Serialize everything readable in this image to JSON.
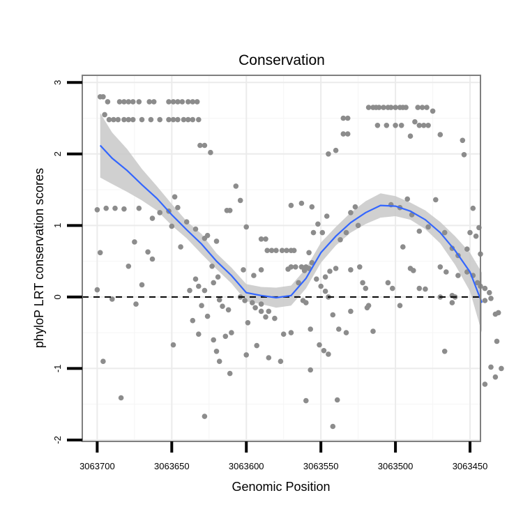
{
  "chart_data": {
    "type": "scatter",
    "title": "Conservation",
    "xlabel": "Genomic Position",
    "ylabel": "phyloP LRT conservation scores",
    "xlim": [
      3063710,
      3063443
    ],
    "ylim": [
      -2.02,
      3.1
    ],
    "x_reversed": true,
    "grid": true,
    "x_ticks": [
      3063700,
      3063650,
      3063600,
      3063550,
      3063500,
      3063450
    ],
    "x_tick_labels": [
      "3063700",
      "3063650",
      "3063600",
      "3063550",
      "3063500",
      "3063450"
    ],
    "y_ticks": [
      -2,
      -1,
      0,
      1,
      2,
      3
    ],
    "y_tick_labels": [
      "-2",
      "-1",
      "0",
      "1",
      "2",
      "3"
    ],
    "reference_line": {
      "y": 0,
      "style": "dashed",
      "color": "#000000"
    },
    "colors": {
      "points": "#8c8c8c",
      "smooth": "#3366ff",
      "ribbon": "#c8c8c8",
      "grid": "#ebebeb",
      "border": "#7f7f7f"
    },
    "series": [
      {
        "name": "phyloP scores",
        "type": "scatter",
        "points": [
          [
            3063698,
            2.8
          ],
          [
            3063696,
            2.8
          ],
          [
            3063693,
            2.73
          ],
          [
            3063685,
            2.73
          ],
          [
            3063682,
            2.73
          ],
          [
            3063679,
            2.73
          ],
          [
            3063676,
            2.73
          ],
          [
            3063672,
            2.73
          ],
          [
            3063665,
            2.73
          ],
          [
            3063662,
            2.73
          ],
          [
            3063652,
            2.73
          ],
          [
            3063649,
            2.73
          ],
          [
            3063646,
            2.73
          ],
          [
            3063643,
            2.73
          ],
          [
            3063639,
            2.73
          ],
          [
            3063636,
            2.73
          ],
          [
            3063633,
            2.73
          ],
          [
            3063695,
            2.55
          ],
          [
            3063692,
            2.48
          ],
          [
            3063689,
            2.48
          ],
          [
            3063686,
            2.48
          ],
          [
            3063682,
            2.48
          ],
          [
            3063679,
            2.48
          ],
          [
            3063676,
            2.48
          ],
          [
            3063670,
            2.48
          ],
          [
            3063664,
            2.48
          ],
          [
            3063658,
            2.48
          ],
          [
            3063652,
            2.48
          ],
          [
            3063649,
            2.48
          ],
          [
            3063646,
            2.48
          ],
          [
            3063642,
            2.48
          ],
          [
            3063639,
            2.48
          ],
          [
            3063636,
            2.48
          ],
          [
            3063632,
            2.48
          ],
          [
            3063700,
            1.22
          ],
          [
            3063694,
            1.24
          ],
          [
            3063688,
            1.24
          ],
          [
            3063682,
            1.23
          ],
          [
            3063672,
            1.24
          ],
          [
            3063663,
            1.1
          ],
          [
            3063658,
            1.18
          ],
          [
            3063652,
            1.2
          ],
          [
            3063648,
            1.4
          ],
          [
            3063646,
            1.25
          ],
          [
            3063698,
            0.62
          ],
          [
            3063675,
            0.77
          ],
          [
            3063679,
            0.43
          ],
          [
            3063663,
            0.53
          ],
          [
            3063666,
            0.63
          ],
          [
            3063650,
            0.99
          ],
          [
            3063644,
            0.7
          ],
          [
            3063700,
            0.1
          ],
          [
            3063690,
            -0.03
          ],
          [
            3063674,
            -0.1
          ],
          [
            3063670,
            0.17
          ],
          [
            3063696,
            -0.9
          ],
          [
            3063684,
            -1.41
          ],
          [
            3063631,
            2.12
          ],
          [
            3063628,
            2.12
          ],
          [
            3063624,
            2.02
          ],
          [
            3063640,
            1.05
          ],
          [
            3063634,
            0.95
          ],
          [
            3063628,
            0.82
          ],
          [
            3063626,
            0.86
          ],
          [
            3063620,
            0.78
          ],
          [
            3063623,
            0.43
          ],
          [
            3063619,
            0.28
          ],
          [
            3063628,
            0.09
          ],
          [
            3063638,
            0.09
          ],
          [
            3063634,
            0.25
          ],
          [
            3063632,
            0.15
          ],
          [
            3063630,
            -0.12
          ],
          [
            3063622,
            0.2
          ],
          [
            3063618,
            -0.04
          ],
          [
            3063616,
            -0.13
          ],
          [
            3063612,
            -0.18
          ],
          [
            3063636,
            -0.33
          ],
          [
            3063632,
            -0.52
          ],
          [
            3063626,
            -0.27
          ],
          [
            3063622,
            -0.6
          ],
          [
            3063614,
            -0.55
          ],
          [
            3063610,
            -0.5
          ],
          [
            3063620,
            -0.76
          ],
          [
            3063618,
            -0.9
          ],
          [
            3063611,
            -1.07
          ],
          [
            3063628,
            -1.67
          ],
          [
            3063649,
            -0.67
          ],
          [
            3063613,
            1.21
          ],
          [
            3063611,
            1.21
          ],
          [
            3063607,
            1.55
          ],
          [
            3063604,
            1.35
          ],
          [
            3063600,
            0.98
          ],
          [
            3063602,
            0.38
          ],
          [
            3063595,
            0.3
          ],
          [
            3063590,
            0.38
          ],
          [
            3063601,
            -0.05
          ],
          [
            3063596,
            -0.08
          ],
          [
            3063594,
            -0.15
          ],
          [
            3063590,
            -0.2
          ],
          [
            3063604,
            0.0
          ],
          [
            3063599,
            -0.36
          ],
          [
            3063590,
            -0.1
          ],
          [
            3063587,
            -0.28
          ],
          [
            3063585,
            -0.2
          ],
          [
            3063581,
            -0.3
          ],
          [
            3063600,
            -0.81
          ],
          [
            3063593,
            -0.68
          ],
          [
            3063585,
            -0.85
          ],
          [
            3063577,
            -0.9
          ],
          [
            3063575,
            -0.52
          ],
          [
            3063570,
            -0.5
          ],
          [
            3063590,
            0.81
          ],
          [
            3063587,
            0.81
          ],
          [
            3063586,
            0.65
          ],
          [
            3063583,
            0.65
          ],
          [
            3063580,
            0.65
          ],
          [
            3063576,
            0.65
          ],
          [
            3063573,
            0.65
          ],
          [
            3063570,
            0.65
          ],
          [
            3063568,
            0.65
          ],
          [
            3063572,
            0.39
          ],
          [
            3063570,
            0.42
          ],
          [
            3063567,
            0.42
          ],
          [
            3063563,
            0.42
          ],
          [
            3063560,
            0.42
          ],
          [
            3063558,
            0.4
          ],
          [
            3063565,
            0.2
          ],
          [
            3063561,
            0.37
          ],
          [
            3063556,
            0.48
          ],
          [
            3063562,
            -0.05
          ],
          [
            3063560,
            -0.08
          ],
          [
            3063557,
            -0.45
          ],
          [
            3063553,
            0.25
          ],
          [
            3063550,
            0.15
          ],
          [
            3063547,
            0.08
          ],
          [
            3063545,
            0.0
          ],
          [
            3063542,
            -0.25
          ],
          [
            3063538,
            -0.45
          ],
          [
            3063533,
            -0.5
          ],
          [
            3063530,
            -0.2
          ],
          [
            3063560,
            -1.45
          ],
          [
            3063557,
            -1.02
          ],
          [
            3063551,
            -0.67
          ],
          [
            3063548,
            -0.75
          ],
          [
            3063545,
            -0.8
          ],
          [
            3063539,
            -1.44
          ],
          [
            3063542,
            -1.81
          ],
          [
            3063570,
            1.28
          ],
          [
            3063563,
            1.31
          ],
          [
            3063556,
            1.26
          ],
          [
            3063552,
            1.02
          ],
          [
            3063546,
            1.13
          ],
          [
            3063549,
            0.9
          ],
          [
            3063555,
            0.9
          ],
          [
            3063558,
            0.62
          ],
          [
            3063547,
            0.28
          ],
          [
            3063544,
            0.36
          ],
          [
            3063540,
            0.4
          ],
          [
            3063537,
            0.8
          ],
          [
            3063533,
            0.9
          ],
          [
            3063530,
            1.18
          ],
          [
            3063527,
            1.26
          ],
          [
            3063525,
            1.0
          ],
          [
            3063530,
            0.38
          ],
          [
            3063524,
            0.42
          ],
          [
            3063522,
            0.2
          ],
          [
            3063520,
            0.12
          ],
          [
            3063519,
            -0.15
          ],
          [
            3063518,
            -0.12
          ],
          [
            3063515,
            -0.48
          ],
          [
            3063545,
            2.0
          ],
          [
            3063540,
            2.05
          ],
          [
            3063535,
            2.5
          ],
          [
            3063532,
            2.5
          ],
          [
            3063535,
            2.28
          ],
          [
            3063532,
            2.28
          ],
          [
            3063518,
            2.65
          ],
          [
            3063515,
            2.65
          ],
          [
            3063513,
            2.65
          ],
          [
            3063511,
            2.65
          ],
          [
            3063508,
            2.65
          ],
          [
            3063505,
            2.65
          ],
          [
            3063503,
            2.65
          ],
          [
            3063500,
            2.65
          ],
          [
            3063497,
            2.65
          ],
          [
            3063495,
            2.65
          ],
          [
            3063493,
            2.65
          ],
          [
            3063485,
            2.65
          ],
          [
            3063482,
            2.65
          ],
          [
            3063479,
            2.65
          ],
          [
            3063475,
            2.6
          ],
          [
            3063512,
            2.4
          ],
          [
            3063506,
            2.4
          ],
          [
            3063500,
            2.4
          ],
          [
            3063496,
            2.4
          ],
          [
            3063484,
            2.4
          ],
          [
            3063481,
            2.4
          ],
          [
            3063478,
            2.4
          ],
          [
            3063487,
            2.45
          ],
          [
            3063490,
            2.25
          ],
          [
            3063470,
            2.27
          ],
          [
            3063455,
            2.19
          ],
          [
            3063454,
            1.99
          ],
          [
            3063503,
            1.29
          ],
          [
            3063497,
            1.25
          ],
          [
            3063492,
            1.37
          ],
          [
            3063489,
            1.15
          ],
          [
            3063484,
            0.92
          ],
          [
            3063478,
            0.98
          ],
          [
            3063473,
            1.36
          ],
          [
            3063467,
            0.9
          ],
          [
            3063462,
            0.68
          ],
          [
            3063458,
            0.58
          ],
          [
            3063452,
            0.67
          ],
          [
            3063448,
            1.24
          ],
          [
            3063450,
            0.9
          ],
          [
            3063446,
            0.85
          ],
          [
            3063444,
            0.97
          ],
          [
            3063443,
            0.6
          ],
          [
            3063490,
            0.4
          ],
          [
            3063488,
            0.37
          ],
          [
            3063484,
            0.12
          ],
          [
            3063470,
            0.42
          ],
          [
            3063466,
            0.35
          ],
          [
            3063462,
            0.02
          ],
          [
            3063460,
            0.0
          ],
          [
            3063458,
            0.3
          ],
          [
            3063452,
            0.35
          ],
          [
            3063448,
            0.3
          ],
          [
            3063445,
            0.2
          ],
          [
            3063443,
            0.15
          ],
          [
            3063440,
            0.12
          ],
          [
            3063437,
            0.06
          ],
          [
            3063440,
            -0.05
          ],
          [
            3063436,
            -0.02
          ],
          [
            3063433,
            -0.24
          ],
          [
            3063432,
            -0.62
          ],
          [
            3063505,
            0.2
          ],
          [
            3063495,
            0.7
          ],
          [
            3063502,
            0.12
          ],
          [
            3063497,
            -0.12
          ],
          [
            3063480,
            0.11
          ],
          [
            3063470,
            0.0
          ],
          [
            3063467,
            -0.76
          ],
          [
            3063462,
            -0.08
          ],
          [
            3063431,
            -0.22
          ],
          [
            3063429,
            -1.0
          ],
          [
            3063436,
            -0.98
          ],
          [
            3063433,
            -1.12
          ],
          [
            3063440,
            -1.22
          ]
        ]
      },
      {
        "name": "loess fit",
        "type": "line",
        "x": [
          3063698,
          3063690,
          3063680,
          3063670,
          3063660,
          3063650,
          3063640,
          3063630,
          3063620,
          3063610,
          3063600,
          3063590,
          3063580,
          3063570,
          3063560,
          3063550,
          3063540,
          3063530,
          3063520,
          3063510,
          3063500,
          3063490,
          3063480,
          3063470,
          3063460,
          3063450,
          3063442
        ],
        "y": [
          2.12,
          1.94,
          1.77,
          1.57,
          1.38,
          1.15,
          0.94,
          0.74,
          0.5,
          0.3,
          0.06,
          0.02,
          -0.01,
          0.02,
          0.26,
          0.62,
          0.85,
          1.04,
          1.18,
          1.28,
          1.27,
          1.2,
          1.08,
          0.9,
          0.65,
          0.35,
          -0.08
        ],
        "lower": [
          1.67,
          1.58,
          1.47,
          1.35,
          1.21,
          1.0,
          0.82,
          0.6,
          0.39,
          0.19,
          -0.06,
          -0.1,
          -0.15,
          -0.12,
          0.12,
          0.48,
          0.72,
          0.9,
          1.02,
          1.11,
          1.13,
          1.08,
          0.95,
          0.75,
          0.45,
          0.08,
          -0.5
        ],
        "upper": [
          2.57,
          2.3,
          2.07,
          1.79,
          1.55,
          1.3,
          1.06,
          0.88,
          0.61,
          0.41,
          0.18,
          0.14,
          0.13,
          0.16,
          0.4,
          0.76,
          0.98,
          1.18,
          1.34,
          1.45,
          1.41,
          1.32,
          1.21,
          1.05,
          0.85,
          0.62,
          0.34
        ]
      }
    ]
  }
}
